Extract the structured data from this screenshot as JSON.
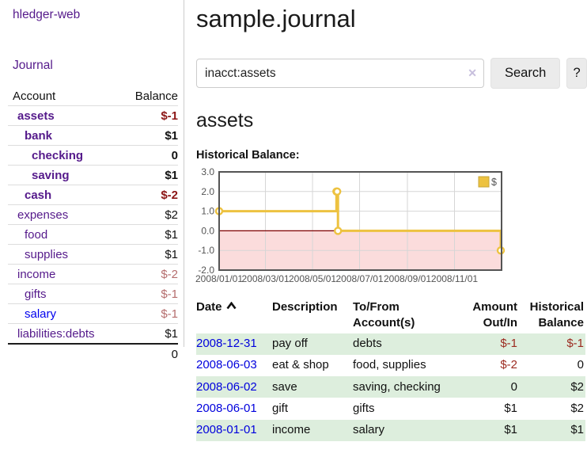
{
  "app": {
    "brand": "hledger-web",
    "nav_journal": "Journal"
  },
  "sidebar": {
    "col_account": "Account",
    "col_balance": "Balance",
    "accounts": [
      {
        "name": "assets",
        "balance": "$-1",
        "indent": 1,
        "bold": true,
        "neg": true,
        "unvisited": false
      },
      {
        "name": "bank",
        "balance": "$1",
        "indent": 2,
        "bold": true,
        "neg": false,
        "unvisited": false
      },
      {
        "name": "checking",
        "balance": "0",
        "indent": 3,
        "bold": true,
        "neg": false,
        "unvisited": false
      },
      {
        "name": "saving",
        "balance": "$1",
        "indent": 3,
        "bold": true,
        "neg": false,
        "unvisited": false
      },
      {
        "name": "cash",
        "balance": "$-2",
        "indent": 2,
        "bold": true,
        "neg": true,
        "unvisited": false
      },
      {
        "name": "expenses",
        "balance": "$2",
        "indent": 1,
        "bold": false,
        "neg": false,
        "unvisited": false
      },
      {
        "name": "food",
        "balance": "$1",
        "indent": 2,
        "bold": false,
        "neg": false,
        "unvisited": false
      },
      {
        "name": "supplies",
        "balance": "$1",
        "indent": 2,
        "bold": false,
        "neg": false,
        "unvisited": false
      },
      {
        "name": "income",
        "balance": "$-2",
        "indent": 1,
        "bold": false,
        "neg": true,
        "unvisited": false
      },
      {
        "name": "gifts",
        "balance": "$-1",
        "indent": 2,
        "bold": false,
        "neg": true,
        "unvisited": false
      },
      {
        "name": "salary",
        "balance": "$-1",
        "indent": 2,
        "bold": false,
        "neg": true,
        "unvisited": true
      },
      {
        "name": "liabilities:debts",
        "balance": "$1",
        "indent": 1,
        "bold": false,
        "neg": false,
        "unvisited": false
      }
    ],
    "total": "0"
  },
  "header": {
    "title": "sample.journal"
  },
  "search": {
    "value": "inacct:assets",
    "clear_label": "✕",
    "button_label": "Search",
    "help_label": "?"
  },
  "account_page": {
    "heading": "assets",
    "chart_label": "Historical Balance:"
  },
  "chart_data": {
    "type": "line",
    "title": "Historical Balance",
    "step": true,
    "series": [
      {
        "name": "$",
        "color": "#edc240",
        "points": [
          [
            "2008-01-01",
            1
          ],
          [
            "2008-06-01",
            2
          ],
          [
            "2008-06-02",
            2
          ],
          [
            "2008-06-03",
            0
          ],
          [
            "2008-12-31",
            -1
          ]
        ]
      }
    ],
    "x_range": [
      "2008-01-01",
      "2009-01-01"
    ],
    "y_range": [
      -2,
      3
    ],
    "x_ticks": [
      "2008/01/01",
      "2008/03/01",
      "2008/05/01",
      "2008/07/01",
      "2008/09/01",
      "2008/11/01"
    ],
    "y_ticks": [
      3.0,
      2.0,
      1.0,
      0.0,
      -1.0,
      -2.0
    ],
    "grid": true,
    "negative_region": {
      "from": 0,
      "to": -2,
      "fill": "#fbdcdc",
      "zero_line": "#800000"
    },
    "legend": {
      "label": "$",
      "position": "top-right"
    },
    "colors": {
      "border": "#545454",
      "gridline": "#d6d6d6",
      "tick_text": "#545454",
      "marker_fill": "#ffffff",
      "legend_box_border": "#c7a637"
    }
  },
  "register": {
    "columns": {
      "date": "Date",
      "description": "Description",
      "accounts": "To/From Account(s)",
      "amount": "Amount Out/In",
      "balance": "Historical Balance"
    },
    "rows": [
      {
        "date": "2008-12-31",
        "description": "pay off",
        "accounts": "debts",
        "amount": "$-1",
        "balance": "$-1",
        "amount_neg": true,
        "balance_neg": true
      },
      {
        "date": "2008-06-03",
        "description": "eat & shop",
        "accounts": "food, supplies",
        "amount": "$-2",
        "balance": "0",
        "amount_neg": true,
        "balance_neg": false
      },
      {
        "date": "2008-06-02",
        "description": "save",
        "accounts": "saving, checking",
        "amount": "0",
        "balance": "$2",
        "amount_neg": false,
        "balance_neg": false
      },
      {
        "date": "2008-06-01",
        "description": "gift",
        "accounts": "gifts",
        "amount": "$1",
        "balance": "$2",
        "amount_neg": false,
        "balance_neg": false
      },
      {
        "date": "2008-01-01",
        "description": "income",
        "accounts": "salary",
        "amount": "$1",
        "balance": "$1",
        "amount_neg": false,
        "balance_neg": false
      }
    ]
  },
  "colors": {
    "link_purple": "#551a8b",
    "link_blue": "#0000ee",
    "date_blue": "#0000dd",
    "negative_dark": "#8c1616",
    "negative_soft": "#b56d6d",
    "row_stripe_green": "#ddeedd",
    "series_gold": "#edc240"
  }
}
